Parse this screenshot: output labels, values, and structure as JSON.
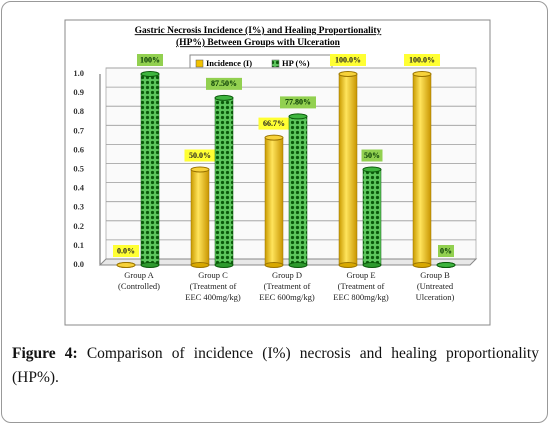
{
  "chart_data": {
    "type": "bar",
    "title": [
      "Gastric Necrosis Incidence (I%) and Healing Proportionality",
      "(HP%) Between Groups with Ulceration"
    ],
    "categories": [
      [
        "Group A",
        "(Controlled)"
      ],
      [
        "Group C",
        "(Treatment of",
        "EEC 400mg/kg)"
      ],
      [
        "Group D",
        "(Treatment of",
        "EEC 600mg/kg)"
      ],
      [
        "Group E",
        "(Treatment of",
        "EEC 800mg/kg)"
      ],
      [
        "Group B",
        "(Untreated",
        "Ulceration)"
      ]
    ],
    "series": [
      {
        "name": "Incidence (I)",
        "color": "#f2c200",
        "values": [
          0,
          0.5,
          0.667,
          1.0,
          1.0
        ],
        "value_labels": [
          "0.0%",
          "50.0%",
          "66.7%",
          "100.0%",
          "100.0%"
        ]
      },
      {
        "name": "HP (%)",
        "color": "#2e9a2e",
        "values": [
          1.0,
          0.875,
          0.778,
          0.5,
          0
        ],
        "value_labels": [
          "100%",
          "87.50%",
          "77.80%",
          "50%",
          "0%"
        ]
      }
    ],
    "ylim": [
      0,
      1.0
    ],
    "yticks": [
      {
        "value": 0,
        "label": "0.0"
      },
      0.1,
      0.2,
      0.3,
      0.4,
      0.5,
      0.6,
      0.7,
      0.8,
      0.9,
      {
        "value": 1,
        "label": "1.0"
      }
    ],
    "grid": true
  },
  "caption": {
    "label": "Figure 4:",
    "text": "Comparison of incidence (I%) necrosis and healing proportionality (HP%)."
  }
}
